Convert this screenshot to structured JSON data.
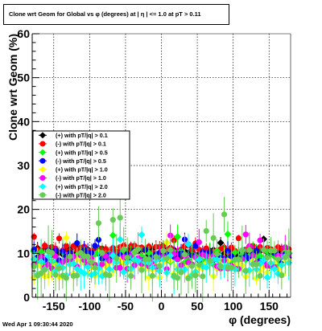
{
  "chart_data": {
    "type": "scatter",
    "title": "Clone wrt Geom for Global vs φ (degrees) at | η | <= 1.0 at pT > 0.11",
    "xlabel": "φ (degrees)",
    "ylabel": "Clone wrt Geom (%)",
    "xlim": [
      -180,
      180
    ],
    "ylim": [
      0,
      60
    ],
    "x_ticks": [
      -150,
      -100,
      -50,
      0,
      50,
      100,
      150
    ],
    "y_ticks": [
      0,
      10,
      20,
      30,
      40,
      50,
      60
    ],
    "grid": true,
    "legend_position": "middle-left",
    "series": [
      {
        "name": "(+) with pT/|q| > 0.1",
        "color": "#000000",
        "marker": "diamond",
        "level": 10.2,
        "spread": 1.0,
        "err": 1.2
      },
      {
        "name": "(-) with pT/|q| > 0.1",
        "color": "#ff0000",
        "marker": "circle",
        "level": 11.0,
        "spread": 0.8,
        "err": 1.0
      },
      {
        "name": "(+) with pT/|q| > 0.5",
        "color": "#00ff00",
        "marker": "diamond",
        "level": 9.0,
        "spread": 1.6,
        "err": 2.0
      },
      {
        "name": "(-) with pT/|q| > 0.5",
        "color": "#0000ff",
        "marker": "circle",
        "level": 9.6,
        "spread": 1.4,
        "err": 1.5
      },
      {
        "name": "(+) with pT/|q| > 1.0",
        "color": "#ffff00",
        "marker": "diamond",
        "level": 6.5,
        "spread": 2.2,
        "err": 2.5
      },
      {
        "name": "(-) with pT/|q| > 1.0",
        "color": "#ff00ff",
        "marker": "circle",
        "level": 8.2,
        "spread": 1.8,
        "err": 2.2
      },
      {
        "name": "(+) with pT/|q| > 2.0",
        "color": "#00ffff",
        "marker": "diamond",
        "level": 7.0,
        "spread": 2.5,
        "err": 3.0
      },
      {
        "name": "(-) with pT/|q| > 2.0",
        "color": "#66cc55",
        "marker": "circle",
        "level": 7.5,
        "spread": 3.5,
        "err": 4.0
      }
    ]
  },
  "footer_timestamp": "Wed Apr  1 09:30:44 2020"
}
